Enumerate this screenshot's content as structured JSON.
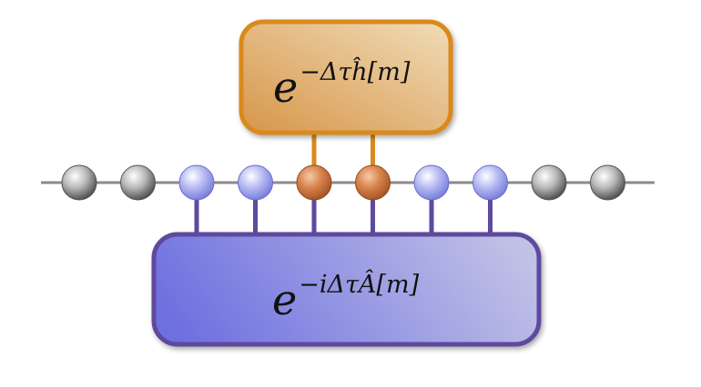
{
  "colors": {
    "chain_line": "#8a8a8a",
    "site_neutral": "#8f8f8f",
    "site_blue": "#9da3ee",
    "site_orange": "#d27a43",
    "top_gate_border": "#d98a1e",
    "top_gate_fill_light": "#efd9b3",
    "top_gate_fill_dark": "#d7964a",
    "bottom_gate_border": "#5e4a9e",
    "bottom_gate_fill_light": "#bcbde4",
    "bottom_gate_fill_dark": "#6e6fe0",
    "top_leg": "#d98a1e",
    "bottom_leg": "#5e4a9e"
  },
  "chain": {
    "sites": [
      {
        "kind": "neutral"
      },
      {
        "kind": "neutral"
      },
      {
        "kind": "blue"
      },
      {
        "kind": "blue"
      },
      {
        "kind": "orange"
      },
      {
        "kind": "orange"
      },
      {
        "kind": "blue"
      },
      {
        "kind": "blue"
      },
      {
        "kind": "neutral"
      },
      {
        "kind": "neutral"
      }
    ]
  },
  "top_gate": {
    "base": "e",
    "exponent": "−Δτĥ[m]",
    "site_indices": [
      4,
      5
    ]
  },
  "bottom_gate": {
    "base": "e",
    "exponent": "−iΔτÂ[m]",
    "site_indices": [
      2,
      3,
      4,
      5,
      6,
      7
    ]
  }
}
